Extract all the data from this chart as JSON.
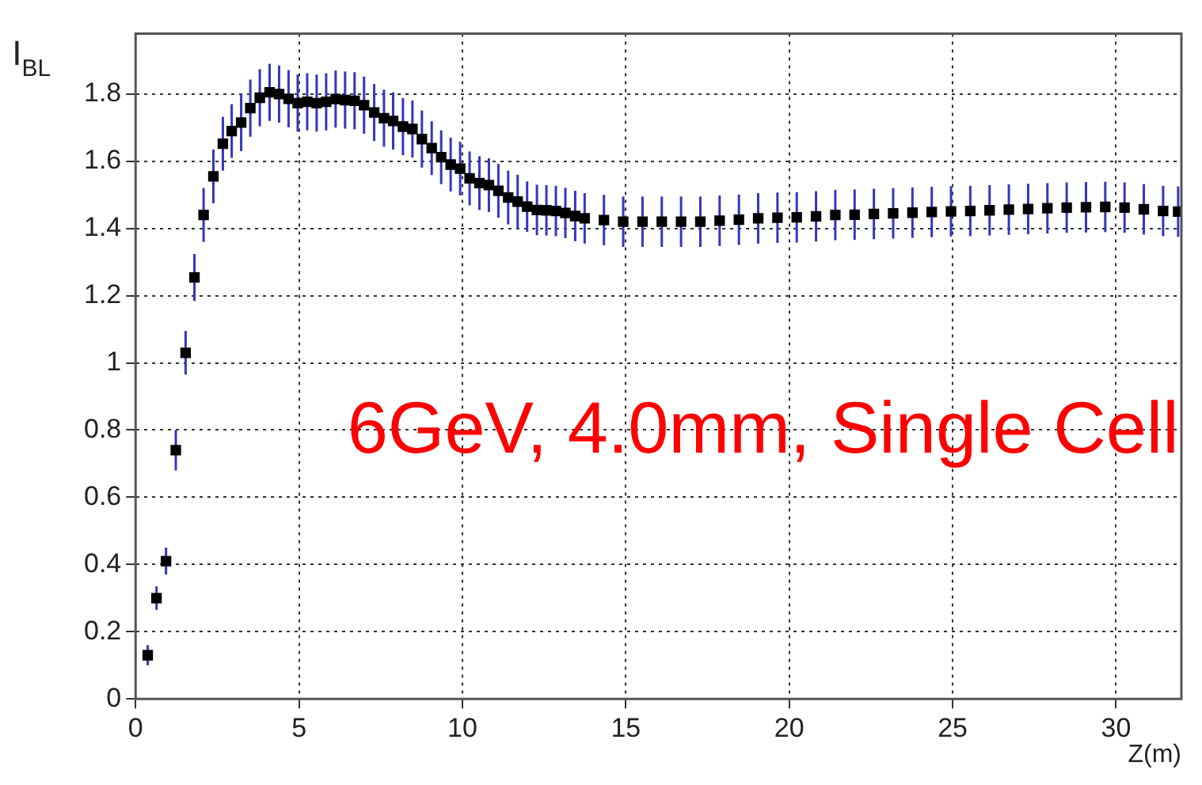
{
  "chart_data": {
    "type": "scatter",
    "xlabel": "Z(m)",
    "ylabel": "I$_{BL}$",
    "annotations": [
      "6GeV, 4.0mm, Single Cell"
    ],
    "xlim": [
      0,
      32
    ],
    "ylim": [
      0,
      1.98
    ],
    "xticks": [
      0,
      5,
      10,
      15,
      20,
      25,
      30
    ],
    "yticks": [
      0,
      0.2,
      0.4,
      0.6,
      0.8,
      1,
      1.2,
      1.4,
      1.6,
      1.8
    ],
    "grid": true,
    "legend": false,
    "marker": "square",
    "series": [
      {
        "color": "#000000",
        "x": [
          0.37,
          0.64,
          0.93,
          1.23,
          1.53,
          1.8,
          2.08,
          2.38,
          2.67,
          2.94,
          3.23,
          3.51,
          3.8,
          4.1,
          4.39,
          4.68,
          4.96,
          5.25,
          5.54,
          5.83,
          6.12,
          6.41,
          6.7,
          6.99,
          7.3,
          7.6,
          7.88,
          8.18,
          8.47,
          8.76,
          9.06,
          9.35,
          9.64,
          9.93,
          10.22,
          10.52,
          10.81,
          11.1,
          11.4,
          11.69,
          11.98,
          12.28,
          12.57,
          12.86,
          13.15,
          13.45,
          13.74,
          14.33,
          14.92,
          15.51,
          16.1,
          16.69,
          17.28,
          17.87,
          18.46,
          19.05,
          19.64,
          20.23,
          20.82,
          21.41,
          22.0,
          22.59,
          23.18,
          23.77,
          24.36,
          24.95,
          25.54,
          26.13,
          26.72,
          27.31,
          27.9,
          28.49,
          29.08,
          29.67,
          30.26,
          30.85,
          31.44,
          31.9
        ],
        "values": [
          0.13,
          0.3,
          0.41,
          0.74,
          1.03,
          1.254,
          1.44,
          1.555,
          1.652,
          1.69,
          1.715,
          1.758,
          1.789,
          1.805,
          1.8,
          1.786,
          1.773,
          1.777,
          1.773,
          1.777,
          1.785,
          1.782,
          1.78,
          1.767,
          1.745,
          1.728,
          1.72,
          1.703,
          1.696,
          1.666,
          1.639,
          1.612,
          1.59,
          1.578,
          1.549,
          1.535,
          1.529,
          1.512,
          1.492,
          1.48,
          1.465,
          1.455,
          1.454,
          1.452,
          1.446,
          1.437,
          1.43,
          1.425,
          1.42,
          1.42,
          1.42,
          1.42,
          1.42,
          1.423,
          1.426,
          1.43,
          1.432,
          1.433,
          1.436,
          1.44,
          1.441,
          1.443,
          1.445,
          1.447,
          1.449,
          1.451,
          1.452,
          1.454,
          1.456,
          1.458,
          1.46,
          1.462,
          1.463,
          1.464,
          1.462,
          1.457,
          1.452,
          1.45
        ],
        "errors": [
          0.03,
          0.035,
          0.04,
          0.06,
          0.065,
          0.07,
          0.08,
          0.08,
          0.08,
          0.08,
          0.085,
          0.085,
          0.085,
          0.085,
          0.085,
          0.085,
          0.085,
          0.085,
          0.085,
          0.085,
          0.085,
          0.085,
          0.085,
          0.085,
          0.085,
          0.085,
          0.085,
          0.085,
          0.085,
          0.085,
          0.08,
          0.08,
          0.08,
          0.08,
          0.08,
          0.08,
          0.08,
          0.08,
          0.08,
          0.08,
          0.075,
          0.075,
          0.075,
          0.075,
          0.075,
          0.075,
          0.075,
          0.075,
          0.075,
          0.075,
          0.075,
          0.075,
          0.075,
          0.075,
          0.075,
          0.075,
          0.075,
          0.075,
          0.075,
          0.075,
          0.075,
          0.075,
          0.075,
          0.075,
          0.075,
          0.075,
          0.075,
          0.075,
          0.075,
          0.075,
          0.075,
          0.075,
          0.075,
          0.075,
          0.075,
          0.075,
          0.075,
          0.075
        ]
      }
    ]
  }
}
